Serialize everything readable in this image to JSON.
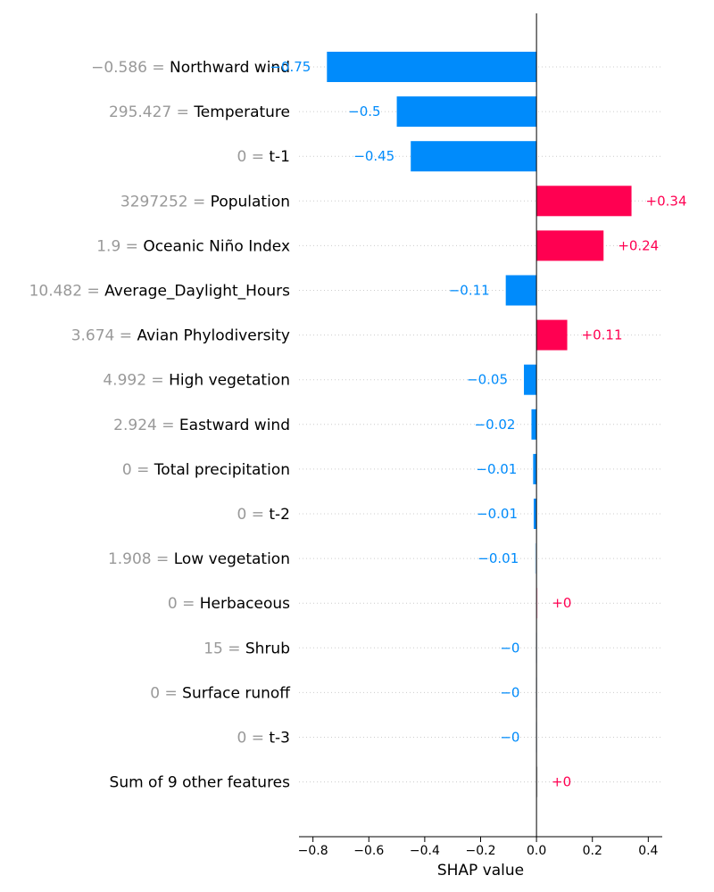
{
  "chart_data": {
    "type": "bar",
    "orientation": "horizontal",
    "xlabel": "SHAP value",
    "xlim": [
      -0.85,
      0.45
    ],
    "xticks": [
      -0.8,
      -0.6,
      -0.4,
      -0.2,
      0.0,
      0.2,
      0.4
    ],
    "xtick_labels": [
      "−0.8",
      "−0.6",
      "−0.4",
      "−0.2",
      "0.0",
      "0.2",
      "0.4"
    ],
    "grid": "horizontal dotted lines per row",
    "colors": {
      "positive": "#ff0051",
      "negative": "#008bfb",
      "positive_light": "#ffc3d5",
      "negative_light": "#d1e6fa",
      "neutral": "#cccccc"
    },
    "rows": [
      {
        "feature_value": "−0.586 =",
        "feature": "Northward wind",
        "value": -0.75,
        "label": "−0.75"
      },
      {
        "feature_value": "295.427 =",
        "feature": "Temperature",
        "value": -0.5,
        "label": "−0.5"
      },
      {
        "feature_value": "0 =",
        "feature": "t-1",
        "value": -0.45,
        "label": "−0.45"
      },
      {
        "feature_value": "3297252 =",
        "feature": "Population",
        "value": 0.34,
        "label": "+0.34"
      },
      {
        "feature_value": "1.9 =",
        "feature": "Oceanic Niño Index",
        "value": 0.24,
        "label": "+0.24"
      },
      {
        "feature_value": "10.482 =",
        "feature": "Average_Daylight_Hours",
        "value": -0.11,
        "label": "−0.11"
      },
      {
        "feature_value": "3.674 =",
        "feature": "Avian Phylodiversity",
        "value": 0.11,
        "label": "+0.11"
      },
      {
        "feature_value": "4.992 =",
        "feature": "High vegetation",
        "value": -0.045,
        "label": "−0.05"
      },
      {
        "feature_value": "2.924 =",
        "feature": "Eastward wind",
        "value": -0.018,
        "label": "−0.02"
      },
      {
        "feature_value": "0 =",
        "feature": "Total precipitation",
        "value": -0.012,
        "label": "−0.01"
      },
      {
        "feature_value": "0 =",
        "feature": "t-2",
        "value": -0.01,
        "label": "−0.01"
      },
      {
        "feature_value": "1.908 =",
        "feature": "Low vegetation",
        "value": -0.006,
        "label": "−0.01"
      },
      {
        "feature_value": "0 =",
        "feature": "Herbaceous",
        "value": 0.004,
        "label": "+0"
      },
      {
        "feature_value": "15 =",
        "feature": "Shrub",
        "value": -0.002,
        "label": "−0"
      },
      {
        "feature_value": "0 =",
        "feature": "Surface runoff",
        "value": -0.002,
        "label": "−0"
      },
      {
        "feature_value": "0 =",
        "feature": "t-3",
        "value": -0.002,
        "label": "−0"
      },
      {
        "feature_value": "",
        "feature": "Sum of 9 other features",
        "value": 0.003,
        "label": "+0"
      }
    ]
  }
}
